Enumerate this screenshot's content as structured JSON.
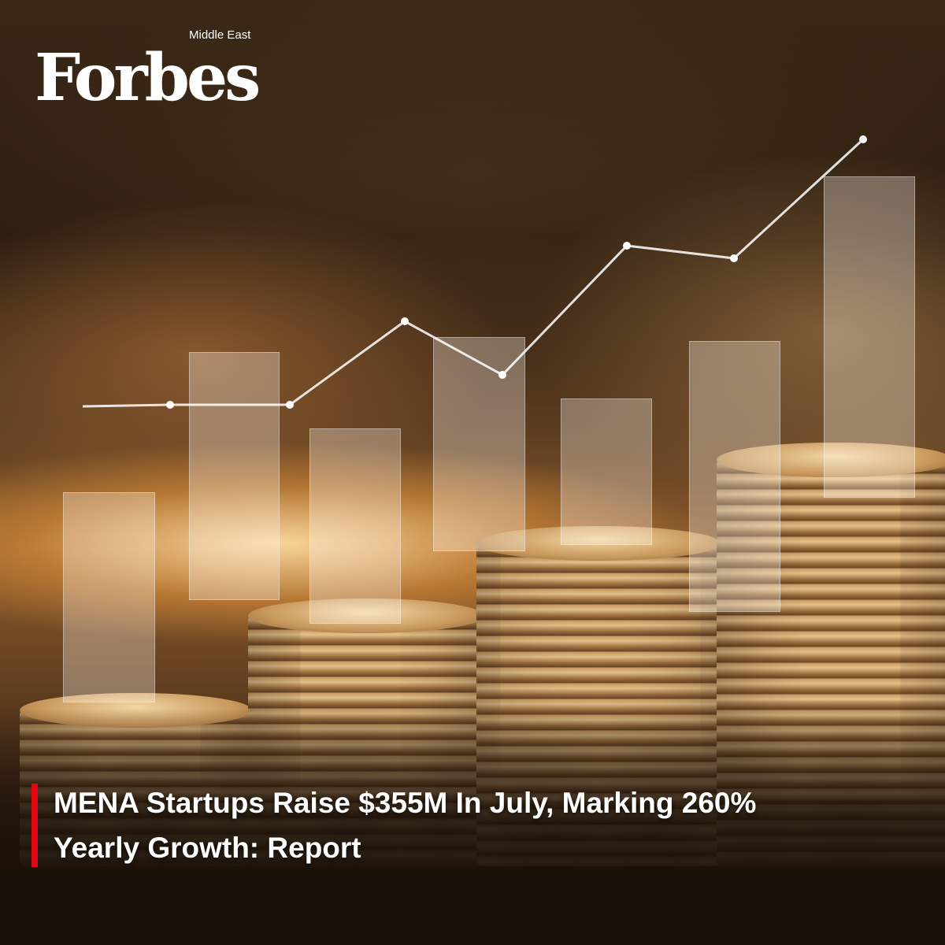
{
  "brand": {
    "logo_text": "Forbes",
    "logo_subtext": "Middle East"
  },
  "headline": {
    "line1": "MENA Startups Raise $355M In July, Marking 260%",
    "line2": "Yearly Growth: Report"
  },
  "colors": {
    "accent_bar": "#e30613",
    "text": "#ffffff"
  }
}
